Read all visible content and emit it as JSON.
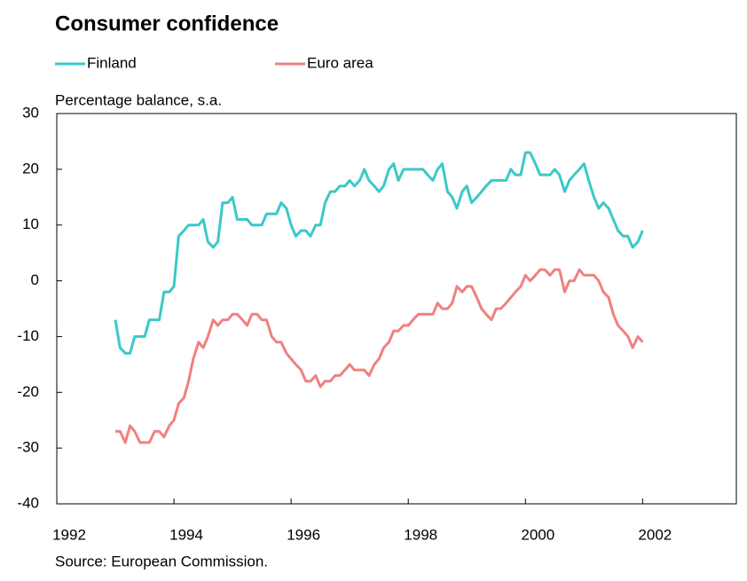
{
  "chart_data": {
    "type": "line",
    "title": "Consumer confidence",
    "y_label": "Percentage balance, s.a.",
    "source": "Source: European Commission.",
    "x": [
      1993.0,
      1993.08,
      1993.17,
      1993.25,
      1993.33,
      1993.42,
      1993.5,
      1993.58,
      1993.67,
      1993.75,
      1993.83,
      1993.92,
      1994.0,
      1994.08,
      1994.17,
      1994.25,
      1994.33,
      1994.42,
      1994.5,
      1994.58,
      1994.67,
      1994.75,
      1994.83,
      1994.92,
      1995.0,
      1995.08,
      1995.17,
      1995.25,
      1995.33,
      1995.42,
      1995.5,
      1995.58,
      1995.67,
      1995.75,
      1995.83,
      1995.92,
      1996.0,
      1996.08,
      1996.17,
      1996.25,
      1996.33,
      1996.42,
      1996.5,
      1996.58,
      1996.67,
      1996.75,
      1996.83,
      1996.92,
      1997.0,
      1997.08,
      1997.17,
      1997.25,
      1997.33,
      1997.42,
      1997.5,
      1997.58,
      1997.67,
      1997.75,
      1997.83,
      1997.92,
      1998.0,
      1998.08,
      1998.17,
      1998.25,
      1998.33,
      1998.42,
      1998.5,
      1998.58,
      1998.67,
      1998.75,
      1998.83,
      1998.92,
      1999.0,
      1999.08,
      1999.17,
      1999.25,
      1999.33,
      1999.42,
      1999.5,
      1999.58,
      1999.67,
      1999.75,
      1999.83,
      1999.92,
      2000.0,
      2000.08,
      2000.17,
      2000.25,
      2000.33,
      2000.42,
      2000.5,
      2000.58,
      2000.67,
      2000.75,
      2000.83,
      2000.92,
      2001.0,
      2001.08,
      2001.17,
      2001.25,
      2001.33,
      2001.42,
      2001.5,
      2001.58,
      2001.67,
      2001.75,
      2001.83,
      2001.92,
      2002.0
    ],
    "series": [
      {
        "name": "Finland",
        "color": "#3cc8c8",
        "values": [
          -7,
          -12,
          -13,
          -13,
          -10,
          -10,
          -10,
          -7,
          -7,
          -7,
          -2,
          -2,
          -1,
          8,
          9,
          10,
          10,
          10,
          11,
          7,
          6,
          7,
          14,
          14,
          15,
          11,
          11,
          11,
          10,
          10,
          10,
          12,
          12,
          12,
          14,
          13,
          10,
          8,
          9,
          9,
          8,
          10,
          10,
          14,
          16,
          16,
          17,
          17,
          18,
          17,
          18,
          20,
          18,
          17,
          16,
          17,
          20,
          21,
          18,
          20,
          20,
          20,
          20,
          20,
          19,
          18,
          20,
          21,
          16,
          15,
          13,
          16,
          17,
          14,
          15,
          16,
          17,
          18,
          18,
          18,
          18,
          20,
          19,
          19,
          23,
          23,
          21,
          19,
          19,
          19,
          20,
          19,
          16,
          18,
          19,
          20,
          21,
          18,
          15,
          13,
          14,
          13,
          11,
          9,
          8,
          8,
          6,
          7,
          9
        ]
      },
      {
        "name": "Euro area",
        "color": "#f08080",
        "values": [
          -27,
          -27,
          -29,
          -26,
          -27,
          -29,
          -29,
          -29,
          -27,
          -27,
          -28,
          -26,
          -25,
          -22,
          -21,
          -18,
          -14,
          -11,
          -12,
          -10,
          -7,
          -8,
          -7,
          -7,
          -6,
          -6,
          -7,
          -8,
          -6,
          -6,
          -7,
          -7,
          -10,
          -11,
          -11,
          -13,
          -14,
          -15,
          -16,
          -18,
          -18,
          -17,
          -19,
          -18,
          -18,
          -17,
          -17,
          -16,
          -15,
          -16,
          -16,
          -16,
          -17,
          -15,
          -14,
          -12,
          -11,
          -9,
          -9,
          -8,
          -8,
          -7,
          -6,
          -6,
          -6,
          -6,
          -4,
          -5,
          -5,
          -4,
          -1,
          -2,
          -1,
          -1,
          -3,
          -5,
          -6,
          -7,
          -5,
          -5,
          -4,
          -3,
          -2,
          -1,
          1,
          0,
          1,
          2,
          2,
          1,
          2,
          2,
          -2,
          0,
          0,
          2,
          1,
          1,
          1,
          0,
          -2,
          -3,
          -6,
          -8,
          -9,
          -10,
          -12,
          -10,
          -11
        ]
      }
    ],
    "xlim": [
      1992,
      2003.6
    ],
    "xticks": [
      1992,
      1994,
      1996,
      1998,
      2000,
      2002
    ],
    "ylim": [
      -40,
      30
    ],
    "yticks": [
      -40,
      -30,
      -20,
      -10,
      0,
      10,
      20,
      30
    ]
  }
}
